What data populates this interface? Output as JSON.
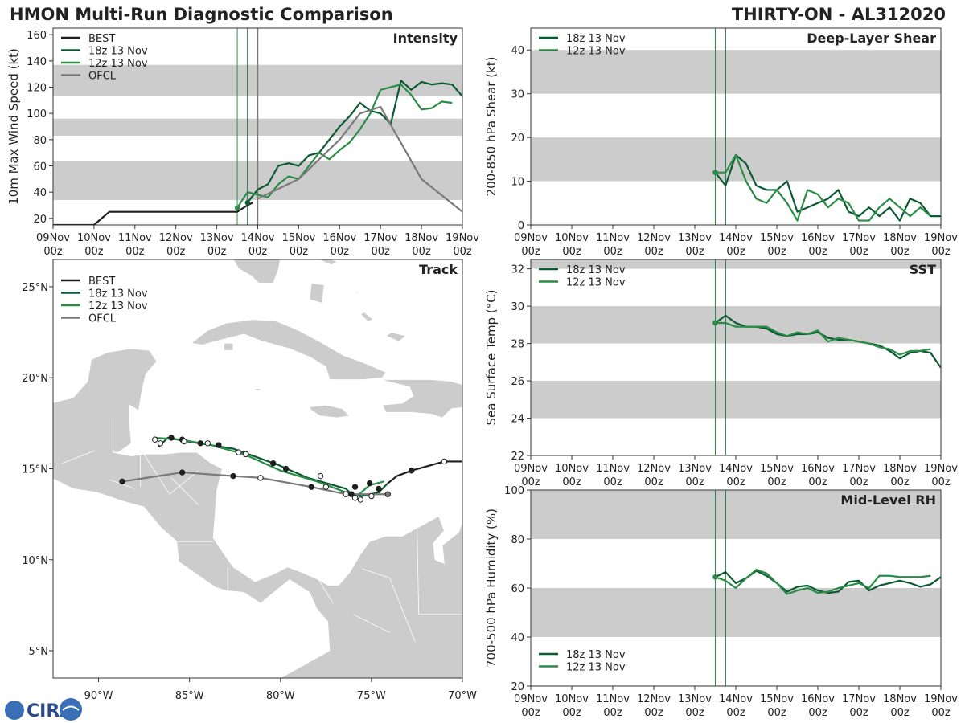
{
  "header": {
    "left_title": "HMON Multi-Run Diagnostic Comparison",
    "right_title": "THIRTY-ON - AL312020"
  },
  "logo": {
    "text": "CIRA"
  },
  "colors": {
    "best": "#1f1f1f",
    "run18z": "#0b5a32",
    "run12z": "#2a8c46",
    "ofcl": "#7a7a7a",
    "band": "#cccccc",
    "land": "#cccccc"
  },
  "time_axis": {
    "range_hours": [
      0,
      240
    ],
    "ticks": [
      {
        "h": 0,
        "top": "09Nov",
        "bottom": "00z"
      },
      {
        "h": 24,
        "top": "10Nov",
        "bottom": "00z"
      },
      {
        "h": 48,
        "top": "11Nov",
        "bottom": "00z"
      },
      {
        "h": 72,
        "top": "12Nov",
        "bottom": "00z"
      },
      {
        "h": 96,
        "top": "13Nov",
        "bottom": "00z"
      },
      {
        "h": 120,
        "top": "14Nov",
        "bottom": "00z"
      },
      {
        "h": 144,
        "top": "15Nov",
        "bottom": "00z"
      },
      {
        "h": 168,
        "top": "16Nov",
        "bottom": "00z"
      },
      {
        "h": 192,
        "top": "17Nov",
        "bottom": "00z"
      },
      {
        "h": 216,
        "top": "18Nov",
        "bottom": "00z"
      },
      {
        "h": 240,
        "top": "19Nov",
        "bottom": "00z"
      }
    ],
    "init_lines": [
      {
        "h": 108,
        "series": "run12z"
      },
      {
        "h": 114,
        "series": "run18z"
      }
    ]
  },
  "chart_data": [
    {
      "id": "intensity",
      "type": "line",
      "title": "Intensity",
      "ylabel": "10m Max Wind Speed (kt)",
      "ylim": [
        15,
        165
      ],
      "yticks": [
        20,
        40,
        60,
        80,
        100,
        120,
        140,
        160
      ],
      "bands": [
        [
          34,
          64
        ],
        [
          83,
          96
        ],
        [
          113,
          137
        ]
      ],
      "ofcl_marker_h": 120,
      "legend": [
        "BEST",
        "18z 13 Nov",
        "12z 13 Nov",
        "OFCL"
      ],
      "series": [
        {
          "name": "BEST",
          "key": "best",
          "x": [
            0,
            24,
            33,
            108,
            114,
            117
          ],
          "y": [
            15,
            15,
            25,
            25,
            30,
            32
          ]
        },
        {
          "name": "18z 13 Nov",
          "key": "run18z",
          "x": [
            114,
            120,
            126,
            132,
            138,
            144,
            150,
            156,
            162,
            168,
            174,
            180,
            186,
            192,
            198,
            204,
            210,
            216,
            222,
            228,
            234,
            240
          ],
          "y": [
            32,
            42,
            46,
            60,
            62,
            60,
            68,
            70,
            80,
            90,
            98,
            108,
            102,
            100,
            92,
            125,
            118,
            124,
            122,
            123,
            122,
            113
          ]
        },
        {
          "name": "12z 13 Nov",
          "key": "run12z",
          "x": [
            108,
            114,
            120,
            126,
            132,
            138,
            144,
            150,
            156,
            162,
            168,
            174,
            180,
            186,
            192,
            198,
            204,
            210,
            216,
            222,
            228,
            234
          ],
          "y": [
            28,
            40,
            38,
            36,
            46,
            52,
            50,
            60,
            70,
            65,
            72,
            78,
            88,
            100,
            118,
            120,
            122,
            114,
            103,
            104,
            109,
            108
          ]
        },
        {
          "name": "OFCL",
          "key": "ofcl",
          "x": [
            120,
            144,
            168,
            180,
            192,
            216,
            240
          ],
          "y": [
            35,
            50,
            80,
            100,
            105,
            50,
            25
          ]
        }
      ]
    },
    {
      "id": "shear",
      "type": "line",
      "title": "Deep-Layer Shear",
      "ylabel": "200-850 hPa Shear (kt)",
      "ylim": [
        0,
        45
      ],
      "yticks": [
        0,
        10,
        20,
        30,
        40
      ],
      "bands": [
        [
          10,
          20
        ],
        [
          30,
          40
        ]
      ],
      "legend": [
        "18z 13 Nov",
        "12z 13 Nov"
      ],
      "series": [
        {
          "name": "18z 13 Nov",
          "key": "run18z",
          "x": [
            108,
            114,
            120,
            126,
            132,
            138,
            144,
            150,
            156,
            162,
            168,
            174,
            180,
            186,
            192,
            198,
            204,
            210,
            216,
            222,
            228,
            234,
            240
          ],
          "y": [
            12,
            9,
            16,
            14,
            9,
            8,
            8,
            10,
            3,
            4,
            5,
            6,
            8,
            3,
            2,
            4,
            2,
            4,
            1,
            6,
            5,
            2,
            2
          ]
        },
        {
          "name": "12z 13 Nov",
          "key": "run12z",
          "x": [
            108,
            114,
            120,
            126,
            132,
            138,
            144,
            150,
            156,
            162,
            168,
            174,
            180,
            186,
            192,
            198,
            204,
            210,
            216,
            222,
            228,
            234
          ],
          "y": [
            12,
            12,
            16,
            10,
            6,
            5,
            8,
            5,
            1,
            8,
            7,
            4,
            6,
            5,
            1,
            1,
            4,
            6,
            4,
            2,
            4,
            2
          ]
        }
      ]
    },
    {
      "id": "sst",
      "type": "line",
      "title": "SST",
      "ylabel": "Sea Surface Temp (°C)",
      "ylim": [
        22,
        32.5
      ],
      "yticks": [
        22,
        24,
        26,
        28,
        30,
        32
      ],
      "bands": [
        [
          24,
          26
        ],
        [
          28,
          30
        ],
        [
          32,
          32.5
        ]
      ],
      "legend": [
        "18z 13 Nov",
        "12z 13 Nov"
      ],
      "series": [
        {
          "name": "18z 13 Nov",
          "key": "run18z",
          "x": [
            108,
            114,
            120,
            126,
            132,
            138,
            144,
            150,
            156,
            162,
            168,
            174,
            180,
            186,
            192,
            198,
            204,
            210,
            216,
            222,
            228,
            234,
            240
          ],
          "y": [
            29.1,
            29.5,
            29.1,
            28.9,
            28.9,
            28.8,
            28.5,
            28.4,
            28.5,
            28.5,
            28.6,
            28.3,
            28.2,
            28.2,
            28.1,
            28.0,
            27.9,
            27.6,
            27.2,
            27.5,
            27.6,
            27.5,
            26.7
          ]
        },
        {
          "name": "12z 13 Nov",
          "key": "run12z",
          "x": [
            108,
            114,
            120,
            126,
            132,
            138,
            144,
            150,
            156,
            162,
            168,
            174,
            180,
            186,
            192,
            198,
            204,
            210,
            216,
            222,
            228,
            234
          ],
          "y": [
            29.1,
            29.1,
            28.9,
            28.9,
            28.9,
            28.9,
            28.6,
            28.4,
            28.6,
            28.5,
            28.7,
            28.1,
            28.3,
            28.2,
            28.1,
            28.0,
            27.8,
            27.7,
            27.4,
            27.6,
            27.6,
            27.7
          ]
        }
      ]
    },
    {
      "id": "rh",
      "type": "line",
      "title": "Mid-Level RH",
      "ylabel": "700-500 hPa Humidity (%)",
      "ylim": [
        20,
        100
      ],
      "yticks": [
        20,
        40,
        60,
        80,
        100
      ],
      "bands": [
        [
          40,
          60
        ],
        [
          80,
          100
        ]
      ],
      "legend": [
        "18z 13 Nov",
        "12z 13 Nov"
      ],
      "series": [
        {
          "name": "18z 13 Nov",
          "key": "run18z",
          "x": [
            108,
            114,
            120,
            126,
            132,
            138,
            144,
            150,
            156,
            162,
            168,
            174,
            180,
            186,
            192,
            198,
            204,
            210,
            216,
            222,
            228,
            234,
            240
          ],
          "y": [
            64.5,
            66.5,
            62,
            64,
            67,
            65,
            62,
            58.5,
            60.5,
            61,
            59,
            58,
            58.5,
            62.5,
            63,
            59,
            61,
            62,
            63,
            62,
            60.5,
            61.5,
            64.5
          ]
        },
        {
          "name": "12z 13 Nov",
          "key": "run12z",
          "x": [
            108,
            114,
            120,
            126,
            132,
            138,
            144,
            150,
            156,
            162,
            168,
            174,
            180,
            186,
            192,
            198,
            204,
            210,
            216,
            222,
            228,
            234
          ],
          "y": [
            64.5,
            63,
            60,
            64,
            67.5,
            66,
            62,
            57.5,
            59,
            60,
            58,
            58.5,
            60,
            61,
            62,
            60,
            65,
            65,
            64.5,
            64.5,
            64.5,
            65
          ]
        }
      ]
    },
    {
      "id": "track",
      "type": "scatter",
      "title": "Track",
      "lon_range": [
        -92.5,
        -70
      ],
      "lat_range": [
        3.5,
        26.5
      ],
      "xticks": [
        {
          "v": -90,
          "label": "90°W"
        },
        {
          "v": -85,
          "label": "85°W"
        },
        {
          "v": -80,
          "label": "80°W"
        },
        {
          "v": -75,
          "label": "75°W"
        },
        {
          "v": -70,
          "label": "70°W"
        }
      ],
      "yticks": [
        {
          "v": 5,
          "label": "5°N"
        },
        {
          "v": 10,
          "label": "10°N"
        },
        {
          "v": 15,
          "label": "15°N"
        },
        {
          "v": 20,
          "label": "20°N"
        },
        {
          "v": 25,
          "label": "25°N"
        }
      ],
      "legend": [
        "BEST",
        "18z 13 Nov",
        "12z 13 Nov",
        "OFCL"
      ],
      "series": [
        {
          "name": "BEST",
          "key": "best",
          "lon": [
            -70,
            -71,
            -72.8,
            -73.6,
            -74.1
          ],
          "lat": [
            15.4,
            15.4,
            14.9,
            14.6,
            14.2
          ],
          "markers": [
            {
              "lon": -71,
              "lat": 15.4,
              "fill": "white"
            },
            {
              "lon": -72.8,
              "lat": 14.9,
              "fill": "dark"
            }
          ]
        },
        {
          "name": "18z 13 Nov",
          "key": "run18z",
          "lon": [
            -74.1,
            -74.6,
            -75.5,
            -76.1,
            -76.4,
            -78.5,
            -80.1,
            -82.6,
            -85.1,
            -86.2,
            -86.7
          ],
          "lat": [
            14.2,
            13.7,
            13.5,
            13.6,
            13.9,
            14.5,
            15.2,
            16.1,
            16.5,
            16.7,
            16.2
          ],
          "markers": [
            {
              "lon": -74.6,
              "lat": 13.9,
              "fill": "dark"
            },
            {
              "lon": -75.9,
              "lat": 14.0,
              "fill": "dark"
            },
            {
              "lon": -76.1,
              "lat": 13.6,
              "fill": "dark"
            },
            {
              "lon": -77.8,
              "lat": 14.6,
              "fill": "white"
            },
            {
              "lon": -79.7,
              "lat": 15.0,
              "fill": "dark"
            },
            {
              "lon": -80.4,
              "lat": 15.3,
              "fill": "dark"
            },
            {
              "lon": -82.3,
              "lat": 15.9,
              "fill": "white"
            },
            {
              "lon": -83.4,
              "lat": 16.3,
              "fill": "dark"
            },
            {
              "lon": -84.4,
              "lat": 16.4,
              "fill": "dark"
            },
            {
              "lon": -85.4,
              "lat": 16.6,
              "fill": "dark"
            },
            {
              "lon": -86.0,
              "lat": 16.7,
              "fill": "dark"
            },
            {
              "lon": -86.6,
              "lat": 16.4,
              "fill": "white"
            }
          ]
        },
        {
          "name": "12z 13 Nov",
          "key": "run12z",
          "lon": [
            -74.3,
            -75.1,
            -75.9,
            -76.4,
            -78.0,
            -80.0,
            -82.0,
            -83.8,
            -85.5,
            -86.9
          ],
          "lat": [
            14.3,
            14.1,
            13.4,
            13.7,
            14.3,
            14.9,
            15.8,
            16.3,
            16.6,
            16.7
          ],
          "markers": [
            {
              "lon": -75.1,
              "lat": 14.2,
              "fill": "dark"
            },
            {
              "lon": -75.0,
              "lat": 13.5,
              "fill": "white"
            },
            {
              "lon": -75.6,
              "lat": 13.3,
              "fill": "white"
            },
            {
              "lon": -75.9,
              "lat": 13.4,
              "fill": "white"
            },
            {
              "lon": -77.5,
              "lat": 14.0,
              "fill": "white"
            },
            {
              "lon": -81.9,
              "lat": 15.8,
              "fill": "white"
            },
            {
              "lon": -84.0,
              "lat": 16.4,
              "fill": "white"
            },
            {
              "lon": -85.3,
              "lat": 16.5,
              "fill": "white"
            },
            {
              "lon": -86.9,
              "lat": 16.6,
              "fill": "white"
            }
          ]
        },
        {
          "name": "OFCL",
          "key": "ofcl",
          "lon": [
            -74.1,
            -76.4,
            -78.3,
            -81.1,
            -82.6,
            -85.4,
            -88.7
          ],
          "lat": [
            13.6,
            13.6,
            14.0,
            14.5,
            14.6,
            14.8,
            14.3
          ],
          "markers": [
            {
              "lon": -74.1,
              "lat": 13.6,
              "fill": "gray"
            },
            {
              "lon": -76.4,
              "lat": 13.6,
              "fill": "white"
            },
            {
              "lon": -78.3,
              "lat": 14.0,
              "fill": "dark"
            },
            {
              "lon": -81.1,
              "lat": 14.5,
              "fill": "white"
            },
            {
              "lon": -82.6,
              "lat": 14.6,
              "fill": "dark"
            },
            {
              "lon": -85.4,
              "lat": 14.8,
              "fill": "dark"
            },
            {
              "lon": -88.7,
              "lat": 14.3,
              "fill": "dark"
            }
          ]
        }
      ]
    }
  ]
}
